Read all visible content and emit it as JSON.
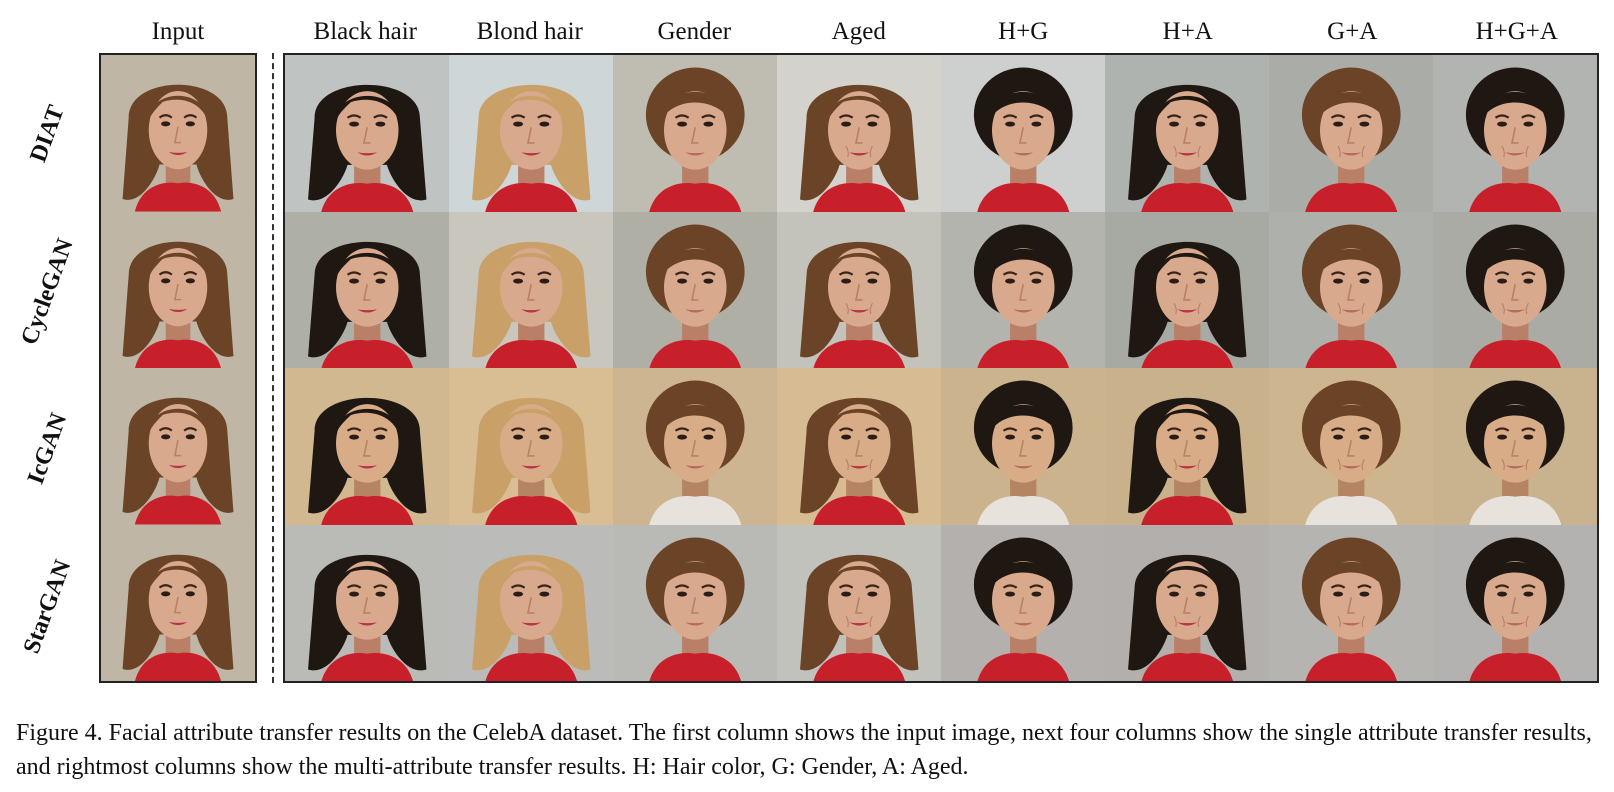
{
  "figure": {
    "input_header": "Input",
    "column_headers": [
      "Black hair",
      "Blond hair",
      "Gender",
      "Aged",
      "H+G",
      "H+A",
      "G+A",
      "H+G+A"
    ],
    "rows": [
      "DIAT",
      "CycleGAN",
      "IcGAN",
      "StarGAN"
    ],
    "caption": "Figure 4. Facial attribute transfer results on the CelebA dataset. The first column shows the input image, next four columns show the single attribute transfer results, and rightmost columns show the multi-attribute transfer results. H: Hair color, G: Gender, A: Aged."
  },
  "colors": {
    "frame_border": "#222222",
    "skin": "#d8a98d",
    "lip": "#b8334a",
    "shirt": "#c8202a",
    "hair_brown": "#6b4327",
    "hair_black": "#1e1712",
    "hair_blond": "#c9a168",
    "bg_grey": "#bdb7ad",
    "bg_warm": "#cdb38e"
  }
}
